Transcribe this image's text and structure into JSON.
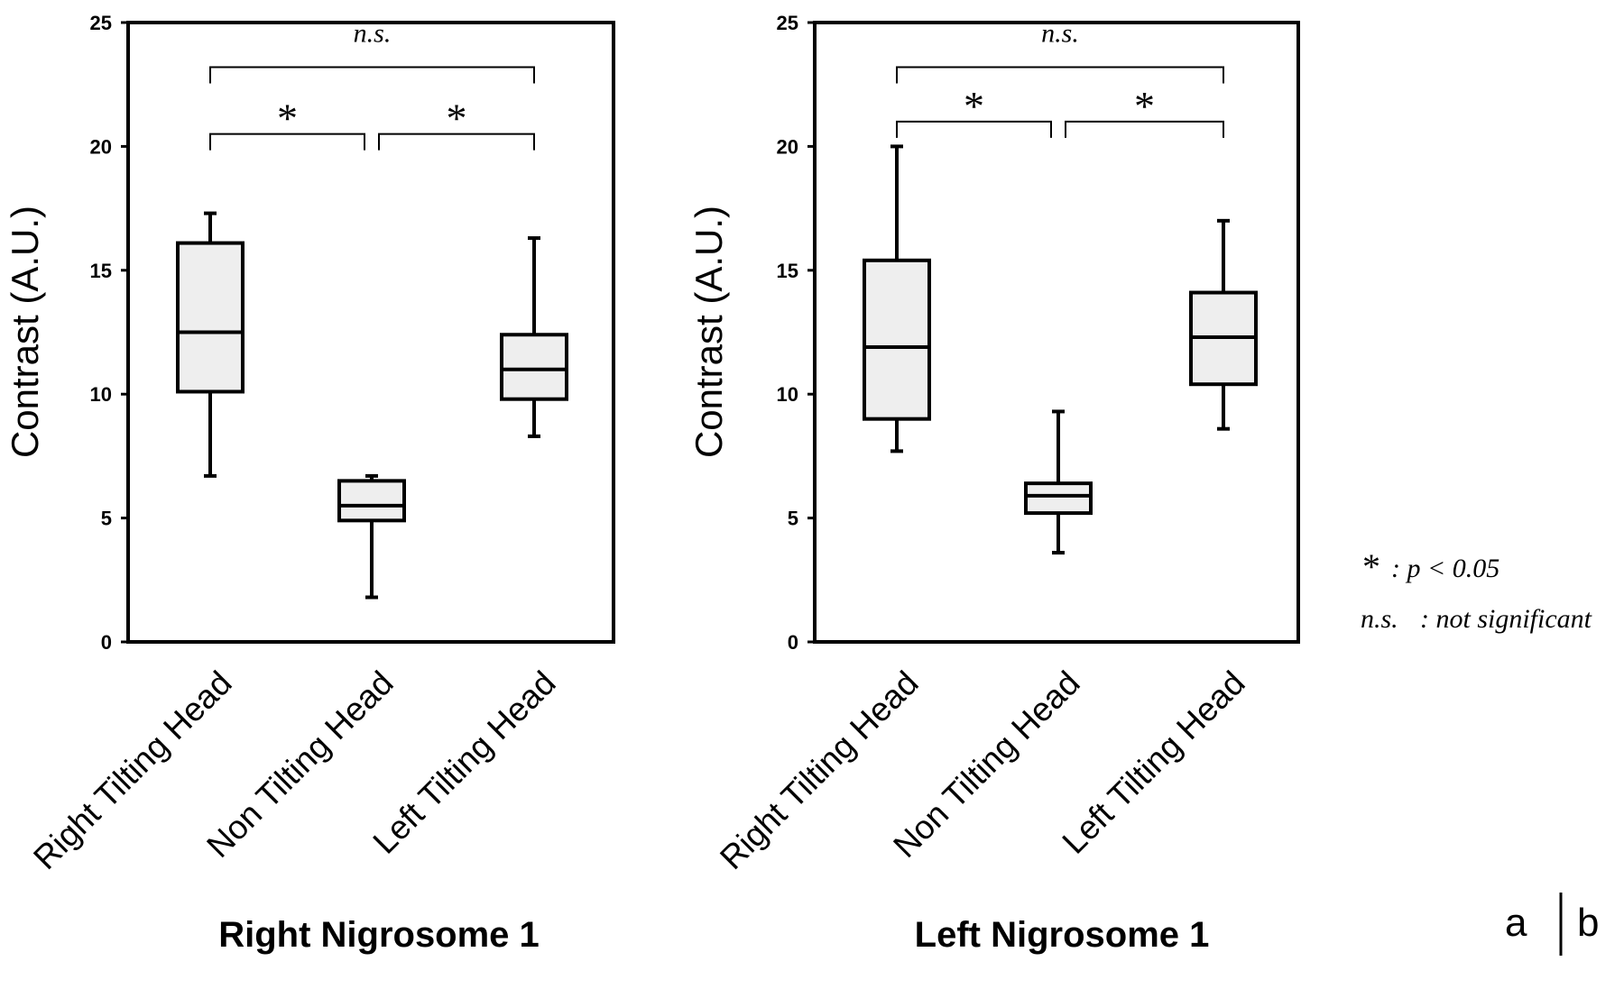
{
  "chart_data": [
    {
      "type": "box",
      "title": "Right Nigrosome 1",
      "ylabel": "Contrast (A.U.)",
      "ylim": [
        0,
        25
      ],
      "yticks": [
        0,
        5,
        10,
        15,
        20,
        25
      ],
      "categories": [
        "Right Tilting Head",
        "Non Tilting Head",
        "Left Tilting Head"
      ],
      "boxes": [
        {
          "min": 6.7,
          "q1": 10.1,
          "median": 12.5,
          "q3": 16.1,
          "max": 17.3
        },
        {
          "min": 1.8,
          "q1": 4.9,
          "median": 5.5,
          "q3": 6.5,
          "max": 6.7
        },
        {
          "min": 8.3,
          "q1": 9.8,
          "median": 11.0,
          "q3": 12.4,
          "max": 16.3
        }
      ],
      "significance": [
        {
          "from": 0,
          "to": 1,
          "y": 20.5,
          "label": "*"
        },
        {
          "from": 1,
          "to": 2,
          "y": 20.5,
          "label": "*"
        },
        {
          "from": 0,
          "to": 2,
          "y": 23.2,
          "label": "n.s."
        }
      ]
    },
    {
      "type": "box",
      "title": "Left Nigrosome 1",
      "ylabel": "Contrast (A.U.)",
      "ylim": [
        0,
        25
      ],
      "yticks": [
        0,
        5,
        10,
        15,
        20,
        25
      ],
      "categories": [
        "Right Tilting Head",
        "Non Tilting Head",
        "Left Tilting Head"
      ],
      "boxes": [
        {
          "min": 7.7,
          "q1": 9.0,
          "median": 11.9,
          "q3": 15.4,
          "max": 20.0
        },
        {
          "min": 3.6,
          "q1": 5.2,
          "median": 5.9,
          "q3": 6.4,
          "max": 9.3
        },
        {
          "min": 8.6,
          "q1": 10.4,
          "median": 12.3,
          "q3": 14.1,
          "max": 17.0
        }
      ],
      "significance": [
        {
          "from": 0,
          "to": 1,
          "y": 21.0,
          "label": "*"
        },
        {
          "from": 1,
          "to": 2,
          "y": 21.0,
          "label": "*"
        },
        {
          "from": 0,
          "to": 2,
          "y": 23.2,
          "label": "n.s."
        }
      ]
    }
  ],
  "legend": {
    "star_symbol": "*",
    "star_text": ":  p < 0.05",
    "ns_symbol": "n.s.",
    "ns_text": ": not significant"
  },
  "panel_labels": {
    "left": "a",
    "right": "b"
  }
}
